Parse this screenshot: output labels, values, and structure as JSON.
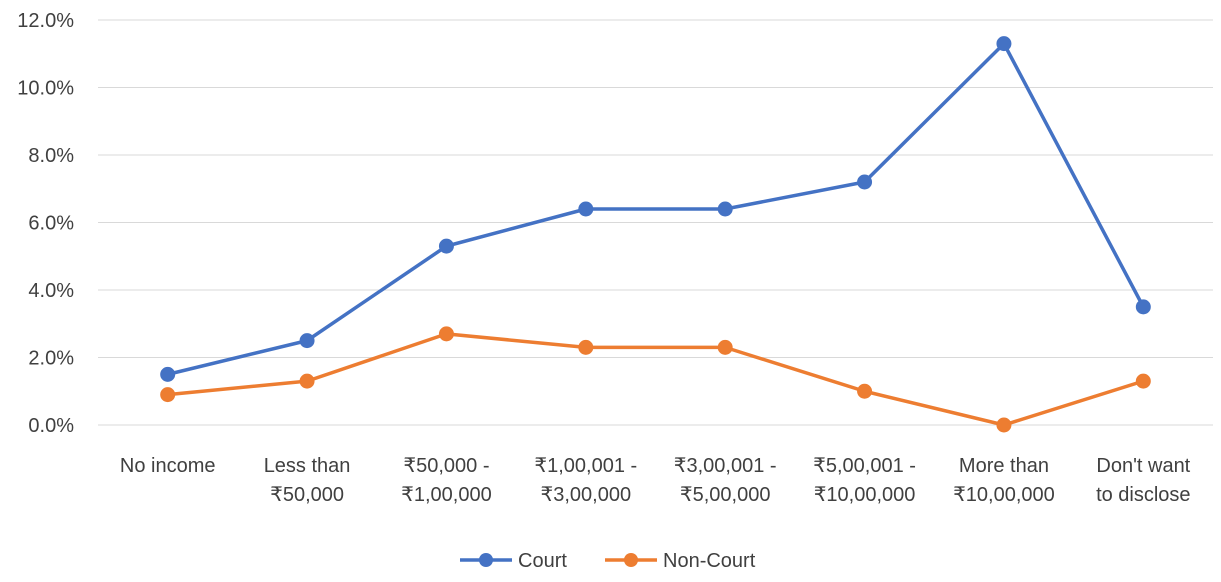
{
  "chart_data": {
    "type": "line",
    "title": "",
    "xlabel": "",
    "ylabel": "",
    "categories": [
      [
        "No income"
      ],
      [
        "Less than",
        "₹50,000"
      ],
      [
        "₹50,000 -",
        "₹1,00,000"
      ],
      [
        "₹1,00,001 -",
        "₹3,00,000"
      ],
      [
        "₹3,00,001 -",
        "₹5,00,000"
      ],
      [
        "₹5,00,001 -",
        "₹10,00,000"
      ],
      [
        "More than",
        "₹10,00,000"
      ],
      [
        "Don't want",
        "to disclose"
      ]
    ],
    "y_ticks": [
      "0.0%",
      "2.0%",
      "4.0%",
      "6.0%",
      "8.0%",
      "10.0%",
      "12.0%"
    ],
    "ylim": [
      0,
      12
    ],
    "y_unit": "%",
    "grid": true,
    "legend_position": "bottom",
    "series": [
      {
        "name": "Court",
        "color": "#4472C4",
        "values": [
          1.5,
          2.5,
          5.3,
          6.4,
          6.4,
          7.2,
          11.3,
          3.5
        ]
      },
      {
        "name": "Non-Court",
        "color": "#ED7D31",
        "values": [
          0.9,
          1.3,
          2.7,
          2.3,
          2.3,
          1.0,
          0.0,
          1.3
        ]
      }
    ]
  }
}
